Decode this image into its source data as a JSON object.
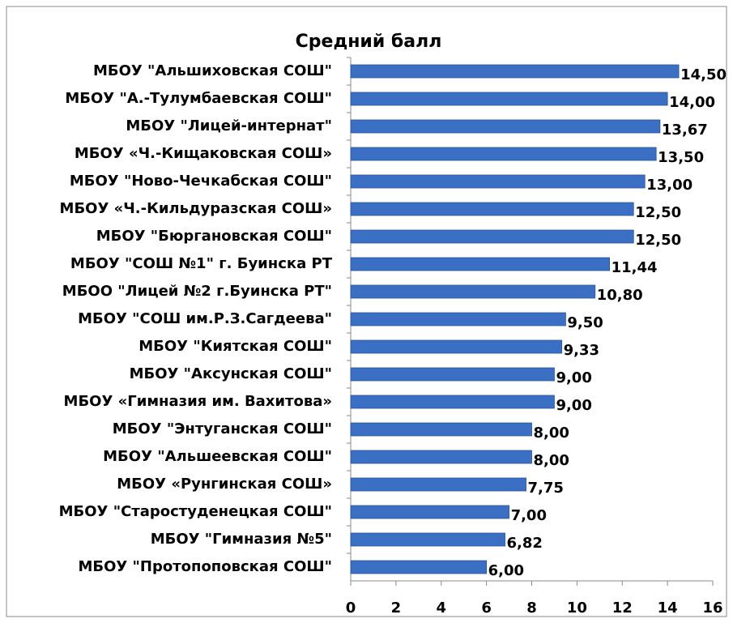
{
  "chart_data": {
    "type": "bar",
    "orientation": "horizontal",
    "title": "Средний балл",
    "categories": [
      "МБОУ \"Альшиховская СОШ\"",
      "МБОУ \"А.-Тулумбаевская СОШ\"",
      "МБОУ \"Лицей-интернат\"",
      "МБОУ «Ч.-Кищаковская СОШ»",
      "МБОУ \"Ново-Чечкабская СОШ\"",
      "МБОУ «Ч.-Кильдуразская СОШ»",
      "МБОУ \"Бюргановская СОШ\"",
      "МБОУ \"СОШ №1\" г. Буинска РТ",
      "МБОО \"Лицей №2 г.Буинска РТ\"",
      "МБОУ \"СОШ им.Р.З.Сагдеева\"",
      "МБОУ \"Киятская СОШ\"",
      "МБОУ \"Аксунская СОШ\"",
      "МБОУ «Гимназия им. Вахитова»",
      "МБОУ \"Энтуганская СОШ\"",
      "МБОУ \"Альшеевская СОШ\"",
      "МБОУ «Рунгинская СОШ»",
      "МБОУ \"Старостуденецкая СОШ\"",
      "МБОУ \"Гимназия №5\"",
      "МБОУ \"Протопоповская СОШ\""
    ],
    "values": [
      14.5,
      14,
      13.67,
      13.5,
      13,
      12.5,
      12.5,
      11.44,
      10.8,
      9.5,
      9.33,
      9,
      9,
      8,
      8,
      7.75,
      7,
      6.82,
      6
    ],
    "value_labels": [
      "14,50",
      "14,00",
      "13,67",
      "13,50",
      "13,00",
      "12,50",
      "12,50",
      "11,44",
      "10,80",
      "9,50",
      "9,33",
      "9,00",
      "9,00",
      "8,00",
      "8,00",
      "7,75",
      "7,00",
      "6,82",
      "6,00"
    ],
    "color": "#3b6fc3",
    "xlim": [
      0,
      16
    ],
    "xticks": [
      0,
      2,
      4,
      6,
      8,
      10,
      12,
      14,
      16
    ]
  }
}
